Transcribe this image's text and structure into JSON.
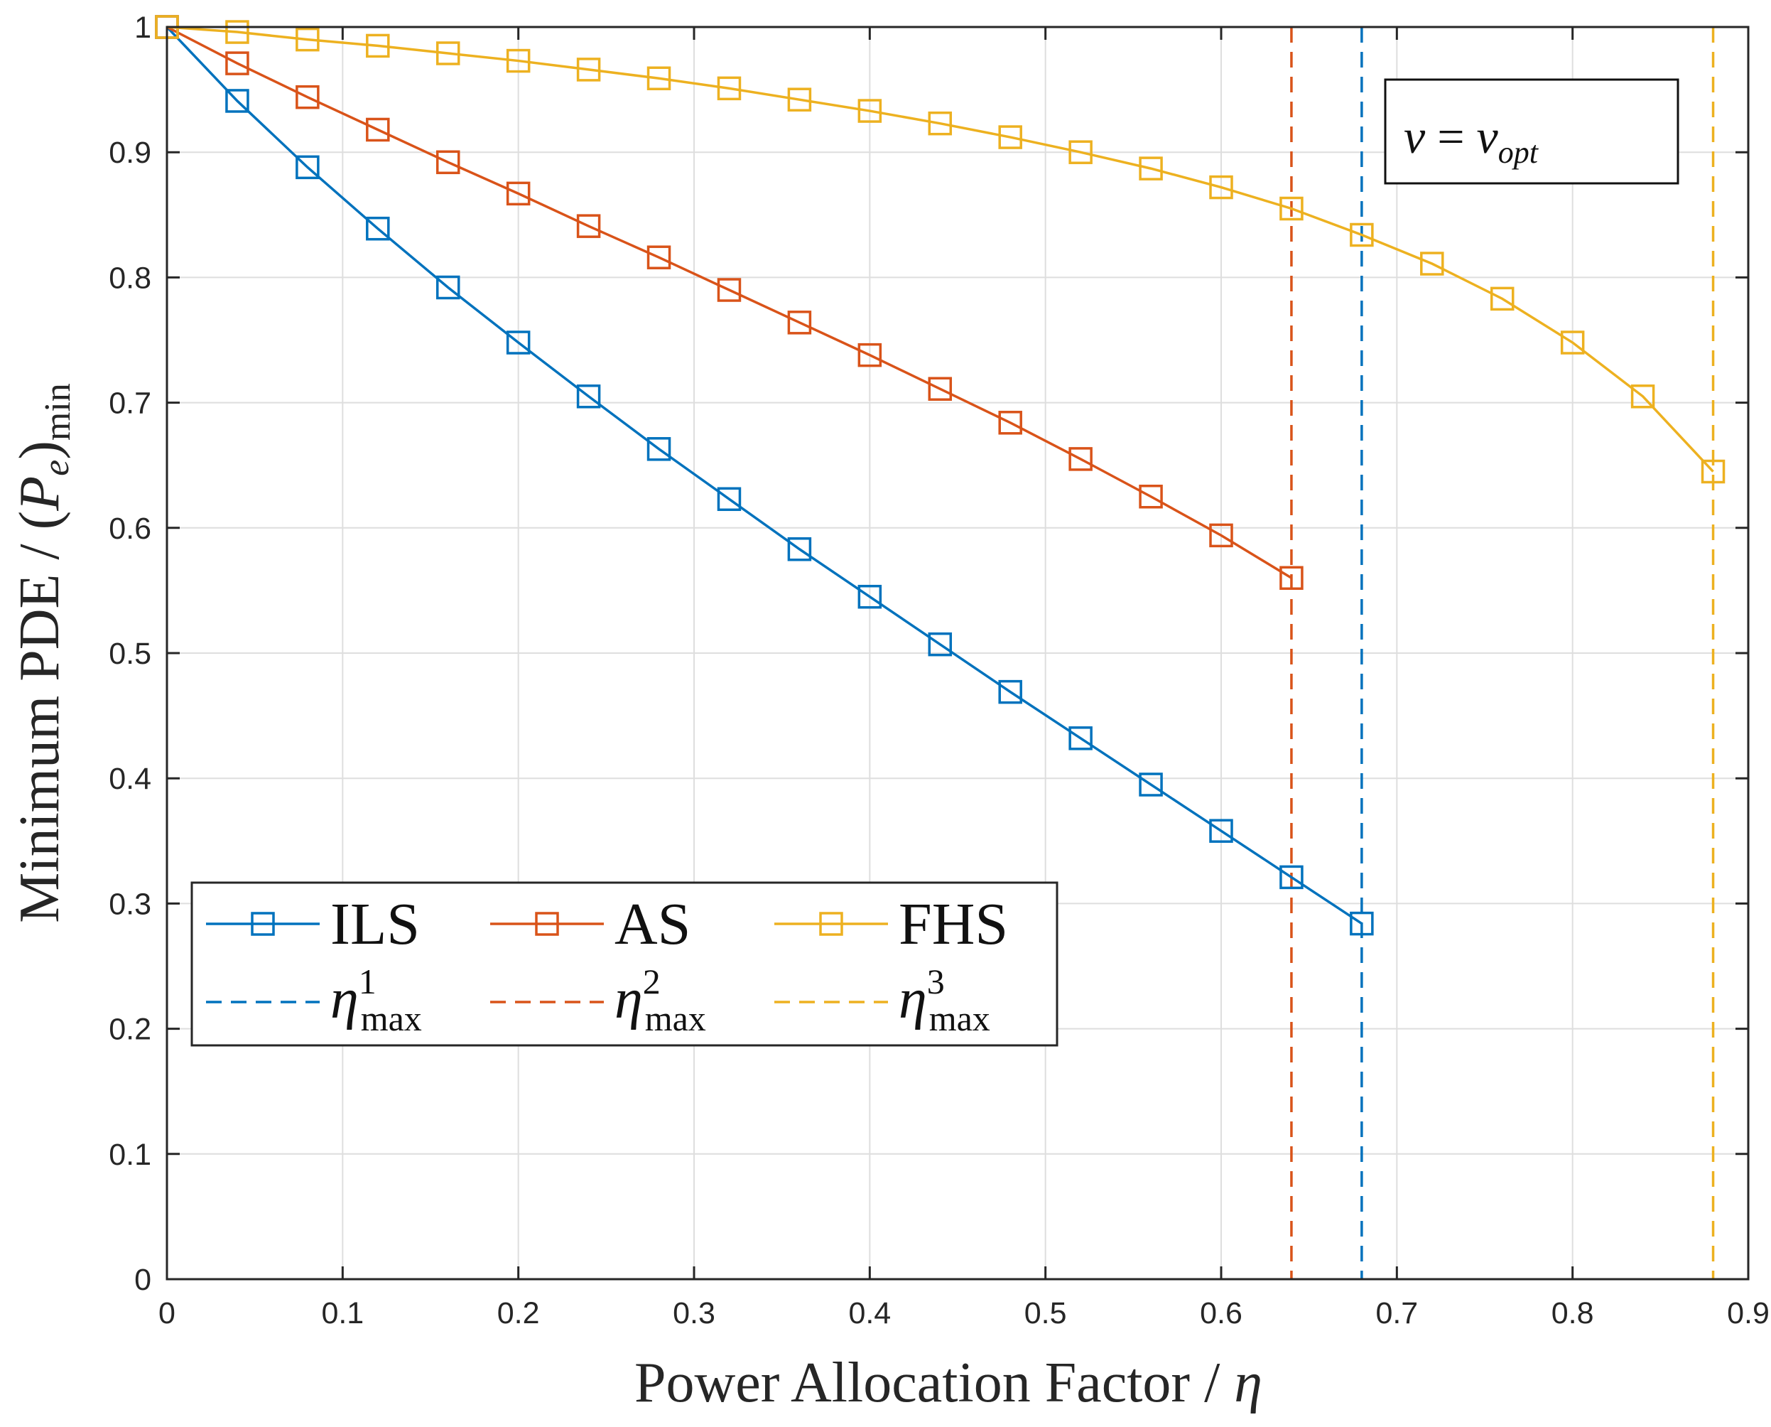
{
  "chart_data": {
    "type": "line",
    "title": "",
    "xlabel": "Power Allocation Factor / η",
    "ylabel": "Minimum PDE / (P_e)_min",
    "ylabel_parts": {
      "main": "Minimum PDE / (",
      "symbol": "P",
      "symbol_sub": "e",
      "close": ")",
      "sub": "min"
    },
    "xlabel_parts": {
      "main": "Power Allocation Factor / ",
      "symbol": "η"
    },
    "xlim": [
      0,
      0.9
    ],
    "ylim": [
      0,
      1
    ],
    "xticks": [
      "0",
      "0.1",
      "0.2",
      "0.3",
      "0.4",
      "0.5",
      "0.6",
      "0.7",
      "0.8",
      "0.9"
    ],
    "yticks": [
      "0",
      "0.1",
      "0.2",
      "0.3",
      "0.4",
      "0.5",
      "0.6",
      "0.7",
      "0.8",
      "0.9",
      "1"
    ],
    "grid": true,
    "legend_position": "lower-left",
    "annotation": {
      "lhs": "ν",
      "eq": " = ",
      "rhs": "ν",
      "rhs_sub": "opt"
    },
    "series": [
      {
        "name": "ILS",
        "color": "#0072BD",
        "marker": "square",
        "x": [
          0,
          0.04,
          0.08,
          0.12,
          0.16,
          0.2,
          0.24,
          0.28,
          0.32,
          0.36,
          0.4,
          0.44,
          0.48,
          0.52,
          0.56,
          0.6,
          0.64,
          0.68
        ],
        "y": [
          1.0,
          0.941,
          0.888,
          0.839,
          0.792,
          0.748,
          0.705,
          0.663,
          0.623,
          0.583,
          0.545,
          0.507,
          0.469,
          0.432,
          0.395,
          0.358,
          0.321,
          0.284
        ]
      },
      {
        "name": "AS",
        "color": "#D95319",
        "marker": "square",
        "x": [
          0,
          0.04,
          0.08,
          0.12,
          0.16,
          0.2,
          0.24,
          0.28,
          0.32,
          0.36,
          0.4,
          0.44,
          0.48,
          0.52,
          0.56,
          0.6,
          0.64
        ],
        "y": [
          1.0,
          0.971,
          0.944,
          0.918,
          0.892,
          0.867,
          0.841,
          0.816,
          0.79,
          0.764,
          0.738,
          0.711,
          0.684,
          0.655,
          0.625,
          0.594,
          0.56
        ]
      },
      {
        "name": "FHS",
        "color": "#EDB120",
        "marker": "square",
        "x": [
          0,
          0.04,
          0.08,
          0.12,
          0.16,
          0.2,
          0.24,
          0.28,
          0.32,
          0.36,
          0.4,
          0.44,
          0.48,
          0.52,
          0.56,
          0.6,
          0.64,
          0.68,
          0.72,
          0.76,
          0.8,
          0.84,
          0.88
        ],
        "y": [
          1.0,
          0.996,
          0.99,
          0.985,
          0.979,
          0.973,
          0.966,
          0.959,
          0.951,
          0.942,
          0.933,
          0.923,
          0.912,
          0.9,
          0.887,
          0.872,
          0.855,
          0.834,
          0.811,
          0.783,
          0.748,
          0.705,
          0.645
        ]
      }
    ],
    "vlines": [
      {
        "name": "η¹max",
        "symbol": "η",
        "sup": "1",
        "sub": "max",
        "x": 0.68,
        "color": "#0072BD",
        "style": "dashed"
      },
      {
        "name": "η²max",
        "symbol": "η",
        "sup": "2",
        "sub": "max",
        "x": 0.64,
        "color": "#D95319",
        "style": "dashed"
      },
      {
        "name": "η³max",
        "symbol": "η",
        "sup": "3",
        "sub": "max",
        "x": 0.88,
        "color": "#EDB120",
        "style": "dashed"
      }
    ]
  }
}
